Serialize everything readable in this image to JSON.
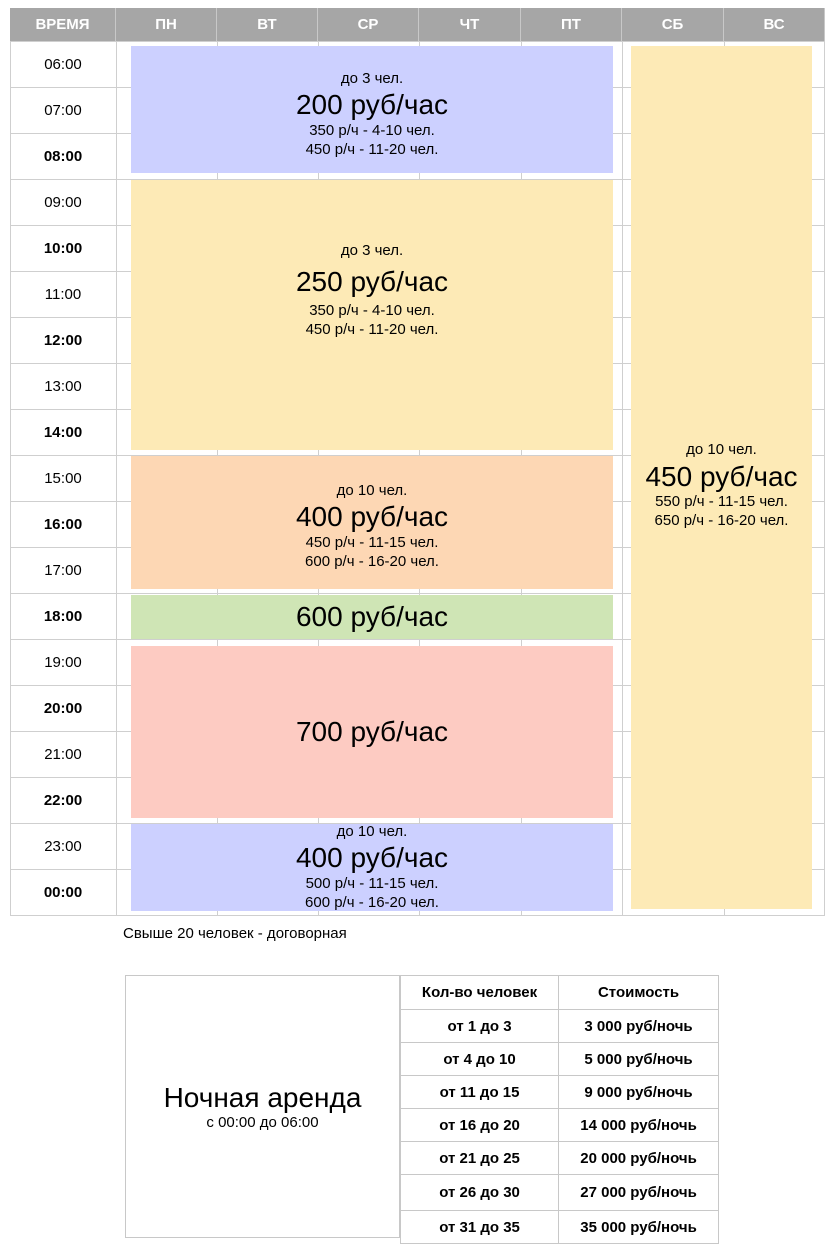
{
  "header": {
    "time_label": "ВРЕМЯ",
    "days": [
      "ПН",
      "ВТ",
      "СР",
      "ЧТ",
      "ПТ",
      "СБ",
      "ВС"
    ]
  },
  "times": [
    "06:00",
    "07:00",
    "08:00",
    "09:00",
    "10:00",
    "11:00",
    "12:00",
    "13:00",
    "14:00",
    "15:00",
    "16:00",
    "17:00",
    "18:00",
    "19:00",
    "20:00",
    "21:00",
    "22:00",
    "23:00",
    "00:00"
  ],
  "weekday_blocks": {
    "morning": {
      "people": "до 3 чел.",
      "price": "200 руб/час",
      "line1": "350 р/ч - 4-10 чел.",
      "line2": "450 р/ч - 11-20 чел.",
      "color": "#ccd0ff"
    },
    "day": {
      "people": "до 3 чел.",
      "price": "250 руб/час",
      "line1": "350 р/ч - 4-10 чел.",
      "line2": "450 р/ч - 11-20 чел.",
      "color": "#fdeab6"
    },
    "afternoon": {
      "people": "до 10 чел.",
      "price": "400 руб/час",
      "line1": "450 р/ч - 11-15 чел.",
      "line2": "600 р/ч - 16-20 чел.",
      "color": "#fdd7b4"
    },
    "six": {
      "price": "600 руб/час",
      "color": "#cfe5b5"
    },
    "evening": {
      "price": "700 руб/час",
      "color": "#fdcbc2"
    },
    "late": {
      "people": "до 10 чел.",
      "price": "400 руб/час",
      "line1": "500 р/ч - 11-15 чел.",
      "line2": "600 р/ч - 16-20 чел.",
      "color": "#ccd0ff"
    }
  },
  "weekend_block": {
    "people": "до 10 чел.",
    "price": "450 руб/час",
    "line1": "550 р/ч - 11-15 чел.",
    "line2": "650 р/ч - 16-20 чел.",
    "color": "#fdeab6"
  },
  "note": "Свыше 20 человек - договорная",
  "night": {
    "title": "Ночная аренда",
    "subtitle": "с 00:00 до 06:00",
    "col_people": "Кол-во человек",
    "col_price": "Стоимость",
    "rows": [
      {
        "people": "от 1 до 3",
        "price": "3 000 руб/ночь"
      },
      {
        "people": "от 4 до 10",
        "price": "5 000 руб/ночь"
      },
      {
        "people": "от 11 до 15",
        "price": "9 000 руб/ночь"
      },
      {
        "people": "от 16 до 20",
        "price": "14 000 руб/ночь"
      },
      {
        "people": "от 21 до 25",
        "price": "20 000 руб/ночь"
      },
      {
        "people": "от 26 до 30",
        "price": "27 000 руб/ночь"
      },
      {
        "people": "от 31 до 35",
        "price": "35 000 руб/ночь"
      }
    ]
  }
}
